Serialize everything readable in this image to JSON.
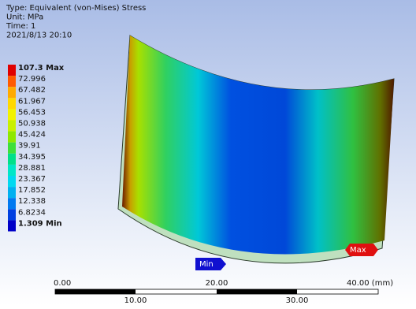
{
  "header": {
    "lines": [
      "Type: Equivalent (von-Mises) Stress",
      "Unit: MPa",
      "Time: 1",
      "2021/8/13 20:10"
    ]
  },
  "legend": {
    "items": [
      {
        "label": "107.3 Max",
        "color": "#e00000"
      },
      {
        "label": "72.996",
        "color": "#ff5a00"
      },
      {
        "label": "67.482",
        "color": "#ffaa00"
      },
      {
        "label": "61.967",
        "color": "#ffd800"
      },
      {
        "label": "56.453",
        "color": "#f2f200"
      },
      {
        "label": "50.938",
        "color": "#c8f000"
      },
      {
        "label": "45.424",
        "color": "#8ee800"
      },
      {
        "label": "39.91",
        "color": "#3ee03a"
      },
      {
        "label": "34.395",
        "color": "#00e08a"
      },
      {
        "label": "28.881",
        "color": "#00e6c8"
      },
      {
        "label": "23.367",
        "color": "#00d8f0"
      },
      {
        "label": "17.852",
        "color": "#00b0f0"
      },
      {
        "label": "12.338",
        "color": "#0078f0"
      },
      {
        "label": "6.8234",
        "color": "#0040e0"
      },
      {
        "label": "1.309 Min",
        "color": "#0000c8"
      }
    ]
  },
  "probes": {
    "min": "Min",
    "max": "Max"
  },
  "scale": {
    "top": [
      "0.00",
      "20.00",
      "40.00 (mm)"
    ],
    "bottom": [
      "10.00",
      "30.00"
    ]
  }
}
